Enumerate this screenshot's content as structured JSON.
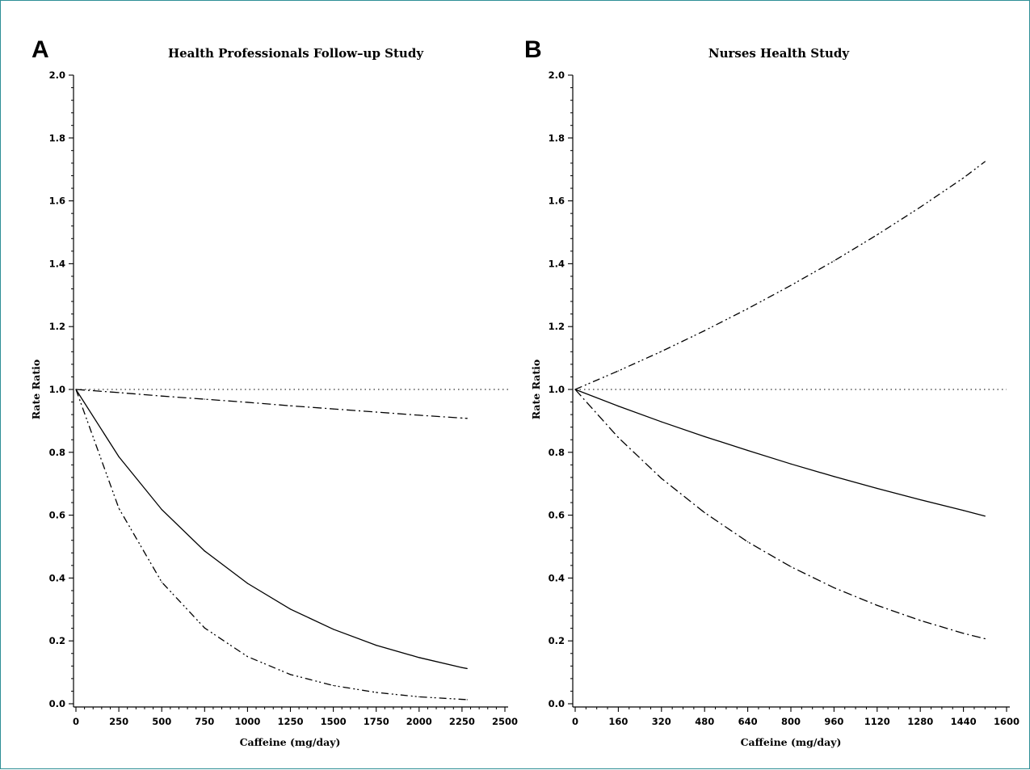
{
  "chart_data": [
    {
      "panel": "A",
      "type": "line",
      "title": "Health Professionals Follow–up Study",
      "xlabel": "Caffeine (mg/day)",
      "ylabel": "Rate Ratio",
      "xlim": [
        0,
        2500
      ],
      "ylim": [
        0.0,
        2.0
      ],
      "xticks": [
        0,
        250,
        500,
        750,
        1000,
        1250,
        1500,
        1750,
        2000,
        2250,
        2500
      ],
      "yticks": [
        "0.0",
        "0.2",
        "0.4",
        "0.6",
        "0.8",
        "1.0",
        "1.2",
        "1.4",
        "1.6",
        "1.8",
        "2.0"
      ],
      "reference_line": {
        "y": 1.0,
        "style": "dotted"
      },
      "series": [
        {
          "style": "solid",
          "x": [
            0,
            250,
            500,
            750,
            1000,
            1250,
            1500,
            1750,
            2000,
            2250,
            2280
          ],
          "values": [
            1.0,
            0.786,
            0.618,
            0.486,
            0.383,
            0.301,
            0.237,
            0.186,
            0.147,
            0.115,
            0.112
          ]
        },
        {
          "style": "dash-dot",
          "x": [
            0,
            250,
            500,
            750,
            1000,
            1250,
            1500,
            1750,
            2000,
            2250,
            2280
          ],
          "values": [
            1.0,
            0.99,
            0.979,
            0.969,
            0.959,
            0.948,
            0.938,
            0.928,
            0.918,
            0.909,
            0.908
          ]
        },
        {
          "style": "dash-dot-dot",
          "x": [
            0,
            250,
            500,
            750,
            1000,
            1250,
            1500,
            1750,
            2000,
            2250,
            2280
          ],
          "values": [
            1.0,
            0.622,
            0.387,
            0.241,
            0.15,
            0.093,
            0.058,
            0.036,
            0.022,
            0.014,
            0.013
          ]
        }
      ]
    },
    {
      "panel": "B",
      "type": "line",
      "title": "Nurses Health Study",
      "xlabel": "Caffeine (mg/day)",
      "ylabel": "Rate Ratio",
      "xlim": [
        0,
        1600
      ],
      "ylim": [
        0.0,
        2.0
      ],
      "xticks": [
        0,
        160,
        320,
        480,
        640,
        800,
        960,
        1120,
        1280,
        1440,
        1600
      ],
      "yticks": [
        "0.0",
        "0.2",
        "0.4",
        "0.6",
        "0.8",
        "1.0",
        "1.2",
        "1.4",
        "1.6",
        "1.8",
        "2.0"
      ],
      "reference_line": {
        "y": 1.0,
        "style": "dotted"
      },
      "series": [
        {
          "style": "solid",
          "x": [
            0,
            160,
            320,
            480,
            640,
            800,
            960,
            1120,
            1280,
            1440,
            1520
          ],
          "values": [
            1.0,
            0.947,
            0.897,
            0.85,
            0.806,
            0.763,
            0.723,
            0.685,
            0.649,
            0.615,
            0.597
          ]
        },
        {
          "style": "dash-dot-dot",
          "x": [
            0,
            160,
            320,
            480,
            640,
            800,
            960,
            1120,
            1280,
            1440,
            1520
          ],
          "values": [
            1.0,
            1.059,
            1.121,
            1.187,
            1.257,
            1.331,
            1.409,
            1.492,
            1.58,
            1.673,
            1.725
          ]
        },
        {
          "style": "dash-dot",
          "x": [
            0,
            160,
            320,
            480,
            640,
            800,
            960,
            1120,
            1280,
            1440,
            1520
          ],
          "values": [
            1.0,
            0.847,
            0.717,
            0.608,
            0.515,
            0.436,
            0.369,
            0.313,
            0.265,
            0.224,
            0.207
          ]
        }
      ]
    }
  ]
}
